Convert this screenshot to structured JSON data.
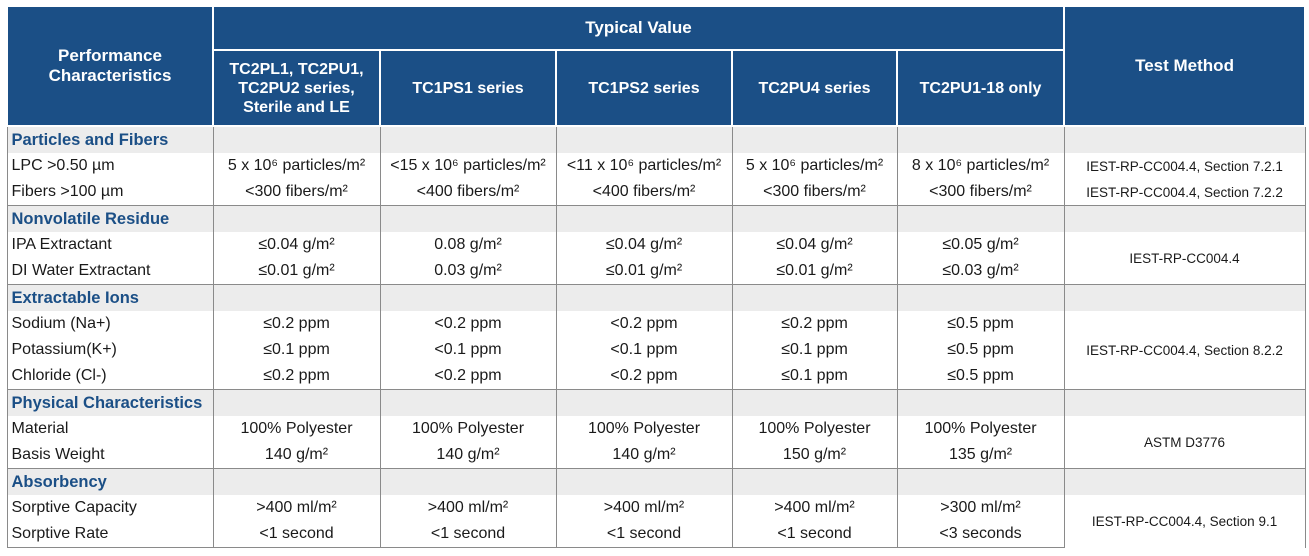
{
  "header": {
    "performance_label": "Performance Characteristics",
    "typical_value_label": "Typical Value",
    "test_method_label": "Test Method",
    "columns": [
      "TC2PL1, TC2PU1, TC2PU2 series, Sterile and LE",
      "TC1PS1 series",
      "TC1PS2 series",
      "TC2PU4 series",
      "TC2PU1-18 only"
    ]
  },
  "sections": [
    {
      "title": "Particles and Fibers",
      "rows": [
        {
          "label": "LPC >0.50 µm",
          "values": [
            "5 x 10⁶ particles/m²",
            "<15 x 10⁶ particles/m²",
            "<11 x 10⁶ particles/m²",
            "5 x 10⁶ particles/m²",
            "8 x 10⁶ particles/m²"
          ],
          "method": "IEST-RP-CC004.4, Section 7.2.1"
        },
        {
          "label": "Fibers >100 µm",
          "values": [
            "<300 fibers/m²",
            "<400 fibers/m²",
            "<400 fibers/m²",
            "<300 fibers/m²",
            "<300 fibers/m²"
          ],
          "method": "IEST-RP-CC004.4, Section 7.2.2"
        }
      ]
    },
    {
      "title": "Nonvolatile Residue",
      "method": "IEST-RP-CC004.4",
      "rows": [
        {
          "label": "IPA Extractant",
          "values": [
            "≤0.04 g/m²",
            "0.08 g/m²",
            "≤0.04 g/m²",
            "≤0.04 g/m²",
            "≤0.05 g/m²"
          ]
        },
        {
          "label": "DI Water Extractant",
          "values": [
            "≤0.01 g/m²",
            "0.03 g/m²",
            "≤0.01 g/m²",
            "≤0.01 g/m²",
            "≤0.03 g/m²"
          ]
        }
      ]
    },
    {
      "title": "Extractable Ions",
      "method": "IEST-RP-CC004.4, Section 8.2.2",
      "rows": [
        {
          "label": "Sodium (Na+)",
          "values": [
            "≤0.2 ppm",
            "<0.2 ppm",
            "<0.2 ppm",
            "≤0.2 ppm",
            "≤0.5 ppm"
          ]
        },
        {
          "label": "Potassium(K+)",
          "values": [
            "≤0.1 ppm",
            "<0.1 ppm",
            "<0.1 ppm",
            "≤0.1 ppm",
            "≤0.5 ppm"
          ]
        },
        {
          "label": "Chloride (Cl-)",
          "values": [
            "≤0.2 ppm",
            "<0.2 ppm",
            "<0.2 ppm",
            "≤0.1 ppm",
            "≤0.5 ppm"
          ]
        }
      ]
    },
    {
      "title": "Physical Characteristics",
      "method": "ASTM D3776",
      "rows": [
        {
          "label": "Material",
          "values": [
            "100% Polyester",
            "100% Polyester",
            "100% Polyester",
            "100% Polyester",
            "100% Polyester"
          ]
        },
        {
          "label": "Basis Weight",
          "values": [
            "140 g/m²",
            "140 g/m²",
            "140 g/m²",
            "150 g/m²",
            "135 g/m²"
          ]
        }
      ]
    },
    {
      "title": "Absorbency",
      "method": "IEST-RP-CC004.4, Section 9.1",
      "rows": [
        {
          "label": "Sorptive Capacity",
          "values": [
            ">400 ml/m²",
            ">400 ml/m²",
            ">400 ml/m²",
            ">400 ml/m²",
            ">300 ml/m²"
          ]
        },
        {
          "label": "Sorptive Rate",
          "values": [
            "<1 second",
            "<1 second",
            "<1 second",
            "<1 second",
            "<3 seconds"
          ]
        }
      ]
    }
  ],
  "colors": {
    "header_bg": "#1b4f86",
    "header_text": "#ffffff",
    "section_bg": "#ececec",
    "section_text": "#1b4f86"
  }
}
